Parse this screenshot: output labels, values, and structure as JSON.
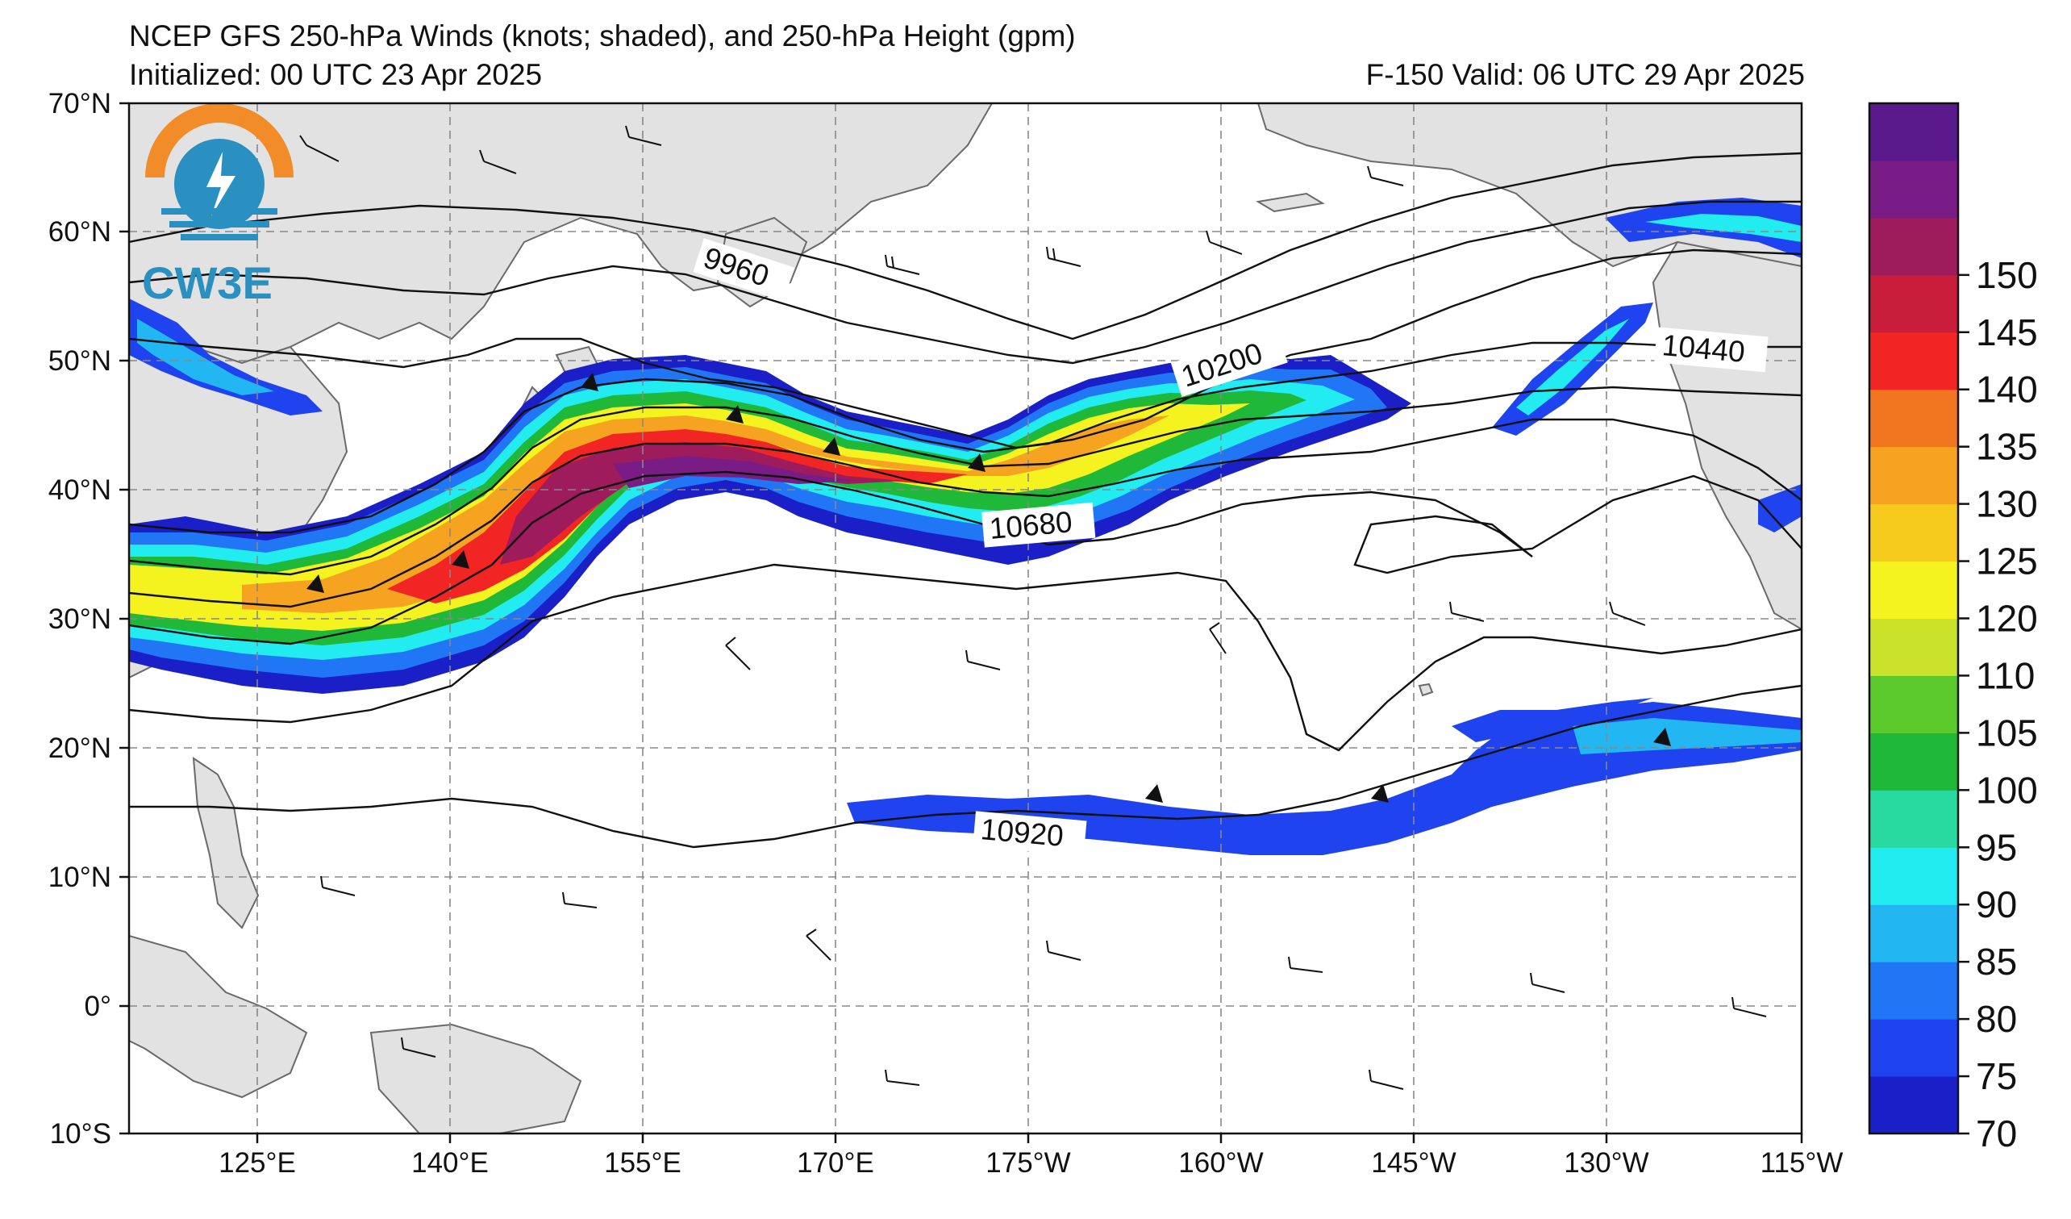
{
  "header": {
    "title": "NCEP GFS 250-hPa Winds (knots; shaded), and 250-hPa Height (gpm)",
    "initialized": "Initialized: 00 UTC 23 Apr 2025",
    "valid": "F-150  Valid: 06 UTC 29 Apr 2025"
  },
  "logo": {
    "text": "CW3E",
    "orange": "#f28c28",
    "blue": "#2a8fc1"
  },
  "axes": {
    "lat_labels": [
      "70°N",
      "60°N",
      "50°N",
      "40°N",
      "30°N",
      "20°N",
      "10°N",
      "0°",
      "10°S"
    ],
    "lon_labels": [
      "125°E",
      "140°E",
      "155°E",
      "170°E",
      "175°W",
      "160°W",
      "145°W",
      "130°W",
      "115°W"
    ]
  },
  "contours": {
    "labels": [
      "9960",
      "10200",
      "10440",
      "10680",
      "10920"
    ]
  },
  "colorbar": {
    "ticks": [
      "70",
      "75",
      "80",
      "85",
      "90",
      "95",
      "100",
      "105",
      "110",
      "120",
      "125",
      "130",
      "135",
      "140",
      "145",
      "150"
    ],
    "colors": [
      "#1a1fc8",
      "#1f43ef",
      "#2176f5",
      "#22b7f2",
      "#22ecef",
      "#28d9a0",
      "#20b838",
      "#5bc92c",
      "#c8e32a",
      "#f4f21f",
      "#f6ca1d",
      "#f5a320",
      "#f27520",
      "#f22525",
      "#c91d3c",
      "#9e1b5c",
      "#7a1c86",
      "#5a1a8c"
    ]
  }
}
